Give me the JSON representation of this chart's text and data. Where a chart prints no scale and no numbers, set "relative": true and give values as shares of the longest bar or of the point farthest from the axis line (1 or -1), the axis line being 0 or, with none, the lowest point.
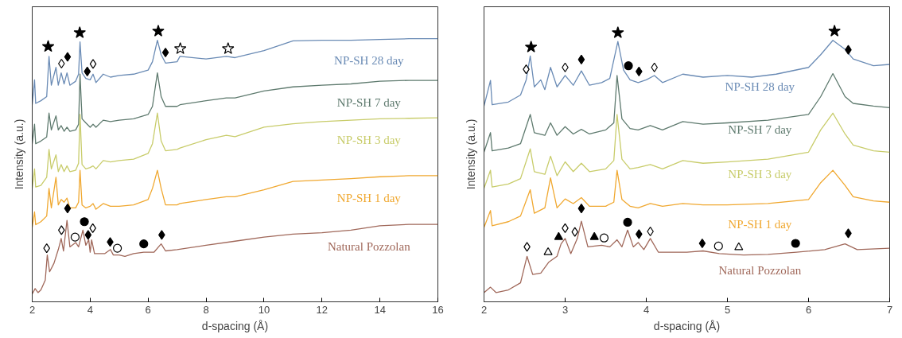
{
  "chart_data": [
    {
      "type": "line",
      "relative": true,
      "xlabel": "d-spacing (Å)",
      "ylabel": "Intensity (a.u.)",
      "xlim": [
        2,
        16
      ],
      "xticks": [
        2,
        4,
        6,
        8,
        10,
        12,
        14,
        16
      ],
      "tick_labels": "x",
      "x": [
        2.0,
        2.08,
        2.12,
        2.3,
        2.5,
        2.58,
        2.66,
        2.82,
        2.9,
        3.0,
        3.1,
        3.2,
        3.3,
        3.5,
        3.6,
        3.65,
        3.72,
        3.85,
        4.0,
        4.1,
        4.2,
        4.45,
        4.7,
        5.0,
        5.5,
        6.0,
        6.15,
        6.32,
        6.45,
        6.6,
        7.0,
        7.1,
        8.0,
        8.7,
        9.0,
        10.0,
        11.0,
        12.0,
        13.0,
        14.0,
        15.0,
        16.0
      ],
      "series": [
        {
          "name": "NP-SH 28 day",
          "color": "#6a8bb5",
          "values": [
            0.728,
            0.82,
            0.733,
            0.743,
            0.758,
            0.907,
            0.8,
            0.866,
            0.8,
            0.846,
            0.805,
            0.846,
            0.8,
            0.815,
            0.841,
            0.96,
            0.846,
            0.825,
            0.82,
            0.841,
            0.81,
            0.841,
            0.83,
            0.836,
            0.841,
            0.856,
            0.887,
            0.966,
            0.913,
            0.882,
            0.887,
            0.907,
            0.897,
            0.907,
            0.902,
            0.928,
            0.964,
            0.966,
            0.966,
            0.969,
            0.972,
            0.972
          ]
        },
        {
          "name": "NP-SH 7 day",
          "color": "#5e7a6e",
          "values": [
            0.584,
            0.656,
            0.584,
            0.594,
            0.609,
            0.697,
            0.635,
            0.687,
            0.635,
            0.651,
            0.63,
            0.645,
            0.63,
            0.635,
            0.656,
            0.841,
            0.676,
            0.661,
            0.645,
            0.656,
            0.645,
            0.671,
            0.666,
            0.671,
            0.676,
            0.692,
            0.722,
            0.846,
            0.758,
            0.722,
            0.722,
            0.728,
            0.743,
            0.753,
            0.753,
            0.779,
            0.794,
            0.8,
            0.805,
            0.815,
            0.818,
            0.818
          ]
        },
        {
          "name": "NP-SH 3 day",
          "color": "#c8cc6a",
          "values": [
            0.419,
            0.491,
            0.424,
            0.43,
            0.46,
            0.563,
            0.491,
            0.543,
            0.481,
            0.507,
            0.481,
            0.502,
            0.481,
            0.486,
            0.512,
            0.692,
            0.507,
            0.491,
            0.496,
            0.502,
            0.491,
            0.522,
            0.517,
            0.522,
            0.527,
            0.548,
            0.584,
            0.697,
            0.594,
            0.558,
            0.563,
            0.568,
            0.599,
            0.615,
            0.61,
            0.645,
            0.658,
            0.666,
            0.671,
            0.676,
            0.678,
            0.68
          ]
        },
        {
          "name": "NP-SH 1 day",
          "color": "#f0a830",
          "values": [
            0.275,
            0.332,
            0.285,
            0.296,
            0.317,
            0.419,
            0.347,
            0.46,
            0.358,
            0.378,
            0.368,
            0.383,
            0.347,
            0.347,
            0.368,
            0.486,
            0.358,
            0.347,
            0.353,
            0.363,
            0.342,
            0.363,
            0.353,
            0.353,
            0.358,
            0.378,
            0.419,
            0.486,
            0.419,
            0.358,
            0.358,
            0.363,
            0.378,
            0.388,
            0.388,
            0.414,
            0.445,
            0.45,
            0.455,
            0.462,
            0.466,
            0.466
          ]
        },
        {
          "name": "Natural Pozzolan",
          "color": "#a0685a",
          "x": [
            2.0,
            2.1,
            2.2,
            2.3,
            2.45,
            2.52,
            2.6,
            2.75,
            2.9,
            3.0,
            3.08,
            3.2,
            3.3,
            3.5,
            3.6,
            3.75,
            3.85,
            3.95,
            4.0,
            4.05,
            4.15,
            4.5,
            4.7,
            4.8,
            5.0,
            5.2,
            5.5,
            5.85,
            6.2,
            6.45,
            6.6,
            7.0,
            8.0,
            9.0,
            10.0,
            11.0,
            12.0,
            13.0,
            14.0,
            15.0,
            16.0
          ],
          "values": [
            0.029,
            0.049,
            0.034,
            0.044,
            0.08,
            0.173,
            0.111,
            0.142,
            0.193,
            0.234,
            0.188,
            0.301,
            0.203,
            0.219,
            0.203,
            0.265,
            0.209,
            0.229,
            0.183,
            0.229,
            0.178,
            0.178,
            0.193,
            0.173,
            0.173,
            0.168,
            0.178,
            0.183,
            0.183,
            0.214,
            0.188,
            0.193,
            0.209,
            0.224,
            0.239,
            0.25,
            0.255,
            0.265,
            0.281,
            0.286,
            0.286
          ]
        },
        {
          "type": "scatter",
          "marker": "star",
          "color": "#000000",
          "x": [
            2.55,
            3.64,
            6.35
          ],
          "values": [
            0.943,
            0.994,
            1.0
          ]
        },
        {
          "type": "scatter",
          "marker": "star",
          "color": "#ffffff",
          "x": [
            7.11,
            8.76
          ],
          "values": [
            0.935,
            0.935
          ]
        },
        {
          "type": "scatter",
          "marker": "diamond",
          "color": "#000000",
          "x": [
            3.22,
            3.9,
            6.6,
            3.22,
            3.93,
            4.69,
            6.47
          ],
          "values": [
            0.905,
            0.851,
            0.921,
            0.345,
            0.247,
            0.221,
            0.247
          ]
        },
        {
          "type": "scatter",
          "marker": "diamond",
          "color": "#ffffff",
          "x": [
            3.01,
            4.1,
            2.5,
            3.01,
            4.09
          ],
          "values": [
            0.88,
            0.879,
            0.198,
            0.265,
            0.272
          ]
        },
        {
          "type": "scatter",
          "marker": "circle",
          "color": "#000000",
          "x": [
            3.8,
            5.85
          ],
          "values": [
            0.296,
            0.214
          ]
        },
        {
          "type": "scatter",
          "marker": "circle",
          "color": "#ffffff",
          "x": [
            3.48,
            4.94
          ],
          "values": [
            0.239,
            0.198
          ]
        }
      ]
    },
    {
      "type": "line",
      "relative": true,
      "xlabel": "d-spacing (Å)",
      "ylabel": "Intensity (a.u.)",
      "xlim": [
        2,
        7
      ],
      "xticks": [
        2,
        3,
        4,
        5,
        6,
        7
      ],
      "tick_labels": "x",
      "x": [
        2.0,
        2.08,
        2.1,
        2.3,
        2.45,
        2.57,
        2.62,
        2.75,
        2.82,
        2.9,
        3.0,
        3.1,
        3.2,
        3.3,
        3.5,
        3.6,
        3.64,
        3.7,
        3.8,
        3.9,
        4.05,
        4.2,
        4.45,
        4.7,
        5.0,
        5.5,
        6.0,
        6.15,
        6.3,
        6.45,
        6.55,
        6.8,
        7.0
      ],
      "series": [
        {
          "name": "NP-SH 28 day",
          "color": "#6a8bb5",
          "x": [
            2.0,
            2.08,
            2.1,
            2.3,
            2.45,
            2.52,
            2.57,
            2.62,
            2.7,
            2.75,
            2.82,
            2.9,
            3.0,
            3.1,
            3.2,
            3.3,
            3.45,
            3.55,
            3.65,
            3.72,
            3.8,
            3.9,
            4.0,
            4.1,
            4.2,
            4.45,
            4.7,
            5.0,
            5.3,
            5.6,
            6.0,
            6.15,
            6.3,
            6.45,
            6.55,
            6.8,
            7.0
          ],
          "values": [
            0.723,
            0.818,
            0.728,
            0.738,
            0.764,
            0.82,
            0.908,
            0.794,
            0.82,
            0.784,
            0.866,
            0.794,
            0.836,
            0.8,
            0.853,
            0.8,
            0.81,
            0.825,
            0.962,
            0.856,
            0.82,
            0.81,
            0.82,
            0.836,
            0.81,
            0.841,
            0.83,
            0.836,
            0.83,
            0.841,
            0.866,
            0.913,
            0.966,
            0.933,
            0.897,
            0.872,
            0.877
          ]
        },
        {
          "name": "NP-SH 7 day",
          "color": "#5e7a6e",
          "values": [
            0.553,
            0.625,
            0.558,
            0.568,
            0.584,
            0.692,
            0.625,
            0.615,
            0.661,
            0.615,
            0.647,
            0.62,
            0.637,
            0.62,
            0.635,
            0.661,
            0.836,
            0.676,
            0.64,
            0.635,
            0.651,
            0.635,
            0.666,
            0.656,
            0.661,
            0.671,
            0.692,
            0.758,
            0.843,
            0.758,
            0.733,
            0.723,
            0.717
          ]
        },
        {
          "name": "NP-SH 3 day",
          "color": "#c8cc6a",
          "values": [
            0.419,
            0.486,
            0.424,
            0.435,
            0.455,
            0.565,
            0.481,
            0.471,
            0.538,
            0.466,
            0.517,
            0.481,
            0.512,
            0.481,
            0.491,
            0.522,
            0.692,
            0.527,
            0.491,
            0.496,
            0.507,
            0.491,
            0.522,
            0.512,
            0.517,
            0.527,
            0.553,
            0.635,
            0.697,
            0.62,
            0.579,
            0.558,
            0.553
          ]
        },
        {
          "name": "NP-SH 1 day",
          "color": "#f0a830",
          "values": [
            0.275,
            0.337,
            0.281,
            0.296,
            0.317,
            0.414,
            0.327,
            0.347,
            0.458,
            0.347,
            0.38,
            0.363,
            0.385,
            0.353,
            0.353,
            0.368,
            0.486,
            0.378,
            0.353,
            0.347,
            0.363,
            0.353,
            0.363,
            0.358,
            0.358,
            0.363,
            0.378,
            0.44,
            0.486,
            0.43,
            0.388,
            0.373,
            0.368
          ]
        },
        {
          "name": "Natural Pozzolan",
          "color": "#a0685a",
          "x": [
            2.0,
            2.08,
            2.15,
            2.3,
            2.45,
            2.53,
            2.6,
            2.7,
            2.8,
            2.9,
            2.95,
            3.0,
            3.07,
            3.15,
            3.2,
            3.28,
            3.45,
            3.55,
            3.64,
            3.7,
            3.77,
            3.84,
            3.9,
            3.97,
            4.05,
            4.15,
            4.5,
            4.7,
            4.9,
            5.2,
            5.5,
            5.85,
            6.2,
            6.45,
            6.6,
            7.0
          ],
          "values": [
            0.034,
            0.054,
            0.034,
            0.044,
            0.07,
            0.168,
            0.101,
            0.106,
            0.147,
            0.168,
            0.214,
            0.234,
            0.178,
            0.234,
            0.298,
            0.203,
            0.209,
            0.203,
            0.229,
            0.203,
            0.265,
            0.203,
            0.219,
            0.193,
            0.234,
            0.183,
            0.183,
            0.188,
            0.178,
            0.173,
            0.175,
            0.183,
            0.193,
            0.214,
            0.193,
            0.198
          ]
        },
        {
          "type": "scatter",
          "marker": "star",
          "color": "#000000",
          "x": [
            2.58,
            3.65,
            6.32
          ],
          "values": [
            0.941,
            0.994,
            1.0
          ]
        },
        {
          "type": "scatter",
          "marker": "diamond",
          "color": "#000000",
          "x": [
            3.2,
            3.91,
            6.49,
            3.2,
            3.91,
            4.69,
            6.49
          ],
          "values": [
            0.895,
            0.851,
            0.931,
            0.345,
            0.25,
            0.216,
            0.253
          ]
        },
        {
          "type": "scatter",
          "marker": "diamond",
          "color": "#ffffff",
          "x": [
            2.52,
            3.0,
            4.1,
            2.53,
            3.0,
            3.12,
            4.05
          ],
          "values": [
            0.859,
            0.866,
            0.866,
            0.203,
            0.272,
            0.258,
            0.26
          ]
        },
        {
          "type": "scatter",
          "marker": "circle",
          "color": "#000000",
          "x": [
            3.78,
            3.77,
            5.84
          ],
          "values": [
            0.872,
            0.294,
            0.216
          ]
        },
        {
          "type": "scatter",
          "marker": "circle",
          "color": "#ffffff",
          "x": [
            3.48,
            4.89
          ],
          "values": [
            0.236,
            0.206
          ]
        },
        {
          "type": "scatter",
          "marker": "triangle",
          "color": "#000000",
          "x": [
            2.92,
            3.36
          ],
          "values": [
            0.239,
            0.239
          ]
        },
        {
          "type": "scatter",
          "marker": "triangle",
          "color": "#ffffff",
          "x": [
            2.79,
            5.14
          ],
          "values": [
            0.183,
            0.201
          ]
        }
      ]
    }
  ]
}
